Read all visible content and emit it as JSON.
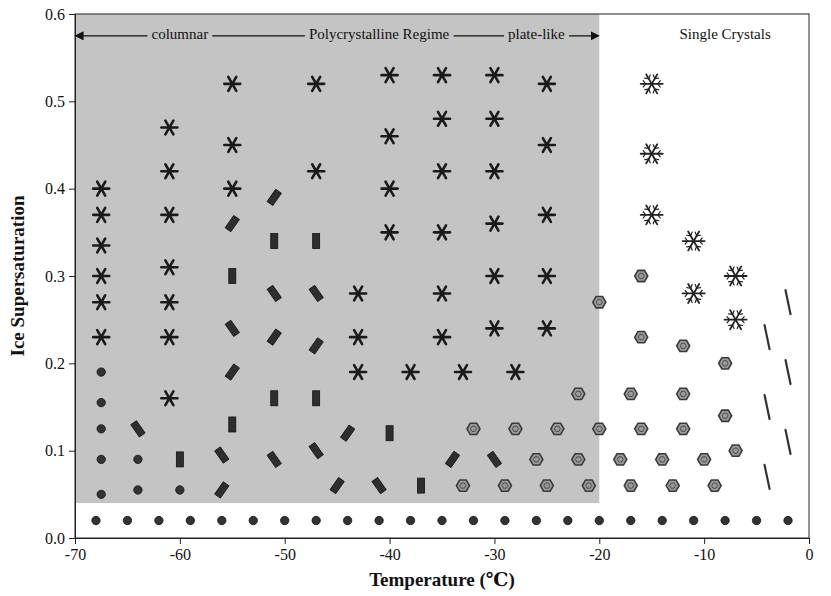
{
  "chart_data": {
    "type": "scatter",
    "x_label": "Temperature (℃)",
    "y_label": "Ice Supersaturation",
    "xlim": [
      -70,
      0
    ],
    "ylim": [
      0,
      0.6
    ],
    "xticks": [
      -70,
      -60,
      -50,
      -40,
      -30,
      -20,
      -10,
      0
    ],
    "yticks": [
      {
        "value": 0,
        "label": "0.0"
      },
      {
        "value": 0.1,
        "label": "0.1"
      },
      {
        "value": 0.2,
        "label": "0.2"
      },
      {
        "value": 0.3,
        "label": "0.3"
      },
      {
        "value": 0.4,
        "label": "0.4"
      },
      {
        "value": 0.5,
        "label": "0.5"
      },
      {
        "value": 0.6,
        "label": "0.6"
      }
    ],
    "grid": false,
    "shaded_region": {
      "x": [
        -70,
        -20
      ],
      "y": [
        0.04,
        0.6
      ],
      "color": "#c4c4c4"
    },
    "annotations": [
      {
        "text": "columnar",
        "x": -60,
        "y": 0.575
      },
      {
        "text": "Polycrystalline Regime",
        "x": -41,
        "y": 0.575
      },
      {
        "text": "plate-like",
        "x": -26,
        "y": 0.575
      },
      {
        "text": "Single Crystals",
        "x": -8,
        "y": 0.575
      }
    ],
    "series": [
      {
        "marker": "circle",
        "color": "#333333",
        "x": [
          -68,
          -65,
          -62,
          -59,
          -56,
          -53,
          -50,
          -47,
          -44,
          -41,
          -38,
          -35,
          -32,
          -29,
          -26,
          -23,
          -20,
          -17,
          -14,
          -11,
          -8,
          -5,
          -2,
          -67.5,
          -67.5,
          -67.5,
          -67.5,
          -67.5,
          -64,
          -64,
          -60
        ],
        "values": [
          0.02,
          0.02,
          0.02,
          0.02,
          0.02,
          0.02,
          0.02,
          0.02,
          0.02,
          0.02,
          0.02,
          0.02,
          0.02,
          0.02,
          0.02,
          0.02,
          0.02,
          0.02,
          0.02,
          0.02,
          0.02,
          0.02,
          0.02,
          0.05,
          0.09,
          0.125,
          0.155,
          0.19,
          0.055,
          0.09,
          0.055
        ]
      },
      {
        "marker": "rosette",
        "color": "#1a1a1a",
        "x": [
          -67.5,
          -67.5,
          -67.5,
          -67.5,
          -67.5,
          -67.5,
          -61,
          -61,
          -61,
          -61,
          -61,
          -61,
          -61,
          -55,
          -55,
          -55,
          -47,
          -47,
          -43,
          -43,
          -43,
          -40,
          -40,
          -40,
          -40,
          -35,
          -35,
          -35,
          -35,
          -35,
          -35,
          -30,
          -30,
          -30,
          -30,
          -30,
          -30,
          -25,
          -25,
          -25,
          -25,
          -25,
          -38,
          -33,
          -28
        ],
        "values": [
          0.23,
          0.27,
          0.3,
          0.335,
          0.37,
          0.4,
          0.16,
          0.23,
          0.27,
          0.31,
          0.37,
          0.42,
          0.47,
          0.4,
          0.45,
          0.52,
          0.42,
          0.52,
          0.19,
          0.23,
          0.28,
          0.35,
          0.4,
          0.46,
          0.53,
          0.23,
          0.28,
          0.35,
          0.42,
          0.48,
          0.53,
          0.24,
          0.3,
          0.36,
          0.42,
          0.48,
          0.53,
          0.24,
          0.3,
          0.37,
          0.45,
          0.52,
          0.19,
          0.19,
          0.19
        ]
      },
      {
        "marker": "column",
        "color": "#2e2e2e",
        "x": [
          -64,
          -60,
          -56,
          -56,
          -55,
          -55,
          -55,
          -55,
          -55,
          -51,
          -51,
          -51,
          -51,
          -51,
          -51,
          -47,
          -47,
          -47,
          -47,
          -47,
          -45,
          -41,
          -37,
          -34,
          -30,
          -40,
          -44
        ],
        "values": [
          0.125,
          0.09,
          0.055,
          0.095,
          0.13,
          0.19,
          0.24,
          0.3,
          0.36,
          0.09,
          0.16,
          0.23,
          0.28,
          0.34,
          0.39,
          0.1,
          0.16,
          0.22,
          0.28,
          0.34,
          0.06,
          0.06,
          0.06,
          0.09,
          0.09,
          0.12,
          0.12
        ]
      },
      {
        "marker": "plate",
        "color": "#3a3a3a",
        "x": [
          -33,
          -29,
          -25,
          -21,
          -17,
          -13,
          -26,
          -22,
          -18,
          -14,
          -10,
          -32,
          -28,
          -24,
          -20,
          -16,
          -12,
          -22,
          -17,
          -12,
          -8,
          -9,
          -7,
          -16,
          -20,
          -16,
          -12,
          -8
        ],
        "values": [
          0.06,
          0.06,
          0.06,
          0.06,
          0.06,
          0.06,
          0.09,
          0.09,
          0.09,
          0.09,
          0.09,
          0.125,
          0.125,
          0.125,
          0.125,
          0.125,
          0.125,
          0.165,
          0.165,
          0.165,
          0.14,
          0.06,
          0.1,
          0.23,
          0.27,
          0.3,
          0.22,
          0.2
        ]
      },
      {
        "marker": "dendrite",
        "color": "#222222",
        "x": [
          -15,
          -15,
          -15,
          -11,
          -11,
          -7,
          -7
        ],
        "values": [
          0.37,
          0.44,
          0.52,
          0.28,
          0.34,
          0.25,
          0.3
        ]
      },
      {
        "marker": "needle",
        "color": "#333333",
        "x": [
          -4,
          -2,
          -4,
          -2,
          -4,
          -2
        ],
        "values": [
          0.07,
          0.11,
          0.15,
          0.19,
          0.23,
          0.27
        ]
      }
    ]
  }
}
